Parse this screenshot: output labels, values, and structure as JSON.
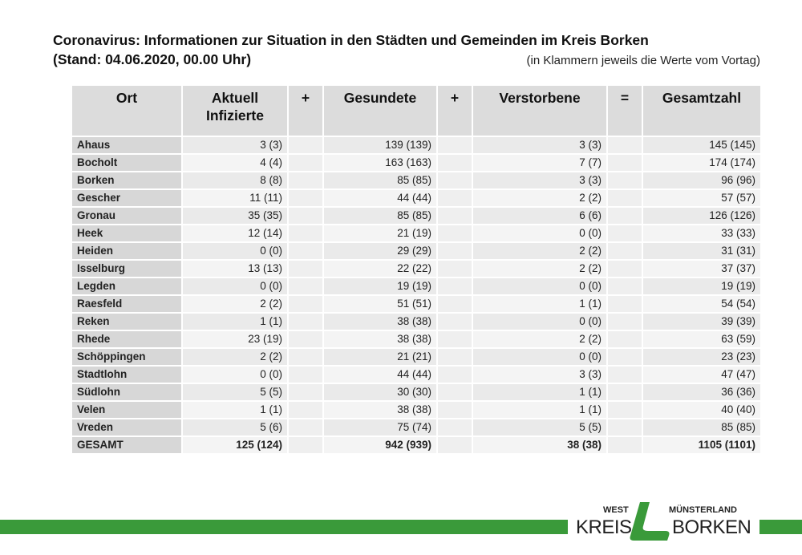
{
  "title": {
    "line1": "Coronavirus: Informationen zur Situation in den Städten und Gemeinden im Kreis Borken",
    "line2": "(Stand: 04.06.2020, 00.00 Uhr)",
    "note": "(in Klammern jeweils die Werte vom Vortag)"
  },
  "table": {
    "headers": {
      "ort": "Ort",
      "aktuell1": "Aktuell",
      "aktuell2": "Infizierte",
      "plus1": "+",
      "gesundete": "Gesundete",
      "plus2": "+",
      "verstorbene": "Verstorbene",
      "equals": "=",
      "gesamtzahl": "Gesamtzahl"
    },
    "rows": [
      {
        "ort": "Ahaus",
        "inf": "3 (3)",
        "ges": "139 (139)",
        "ver": "3 (3)",
        "tot": "145 (145)"
      },
      {
        "ort": "Bocholt",
        "inf": "4 (4)",
        "ges": "163 (163)",
        "ver": "7 (7)",
        "tot": "174 (174)"
      },
      {
        "ort": "Borken",
        "inf": "8 (8)",
        "ges": "85 (85)",
        "ver": "3 (3)",
        "tot": "96 (96)"
      },
      {
        "ort": "Gescher",
        "inf": "11 (11)",
        "ges": "44 (44)",
        "ver": "2 (2)",
        "tot": "57 (57)"
      },
      {
        "ort": "Gronau",
        "inf": "35 (35)",
        "ges": "85 (85)",
        "ver": "6 (6)",
        "tot": "126 (126)"
      },
      {
        "ort": "Heek",
        "inf": "12 (14)",
        "ges": "21 (19)",
        "ver": "0 (0)",
        "tot": "33 (33)"
      },
      {
        "ort": "Heiden",
        "inf": "0 (0)",
        "ges": "29 (29)",
        "ver": "2 (2)",
        "tot": "31 (31)"
      },
      {
        "ort": "Isselburg",
        "inf": "13 (13)",
        "ges": "22 (22)",
        "ver": "2 (2)",
        "tot": "37 (37)"
      },
      {
        "ort": "Legden",
        "inf": "0 (0)",
        "ges": "19 (19)",
        "ver": "0 (0)",
        "tot": "19 (19)"
      },
      {
        "ort": "Raesfeld",
        "inf": "2 (2)",
        "ges": "51 (51)",
        "ver": "1 (1)",
        "tot": "54 (54)"
      },
      {
        "ort": "Reken",
        "inf": "1 (1)",
        "ges": "38 (38)",
        "ver": "0 (0)",
        "tot": "39 (39)"
      },
      {
        "ort": "Rhede",
        "inf": "23 (19)",
        "ges": "38 (38)",
        "ver": "2 (2)",
        "tot": "63 (59)"
      },
      {
        "ort": "Schöppingen",
        "inf": "2 (2)",
        "ges": "21 (21)",
        "ver": "0 (0)",
        "tot": "23 (23)"
      },
      {
        "ort": "Stadtlohn",
        "inf": "0 (0)",
        "ges": "44 (44)",
        "ver": "3 (3)",
        "tot": "47 (47)"
      },
      {
        "ort": "Südlohn",
        "inf": "5 (5)",
        "ges": "30 (30)",
        "ver": "1 (1)",
        "tot": "36 (36)"
      },
      {
        "ort": "Velen",
        "inf": "1 (1)",
        "ges": "38 (38)",
        "ver": "1 (1)",
        "tot": "40 (40)"
      },
      {
        "ort": "Vreden",
        "inf": "5 (6)",
        "ges": "75 (74)",
        "ver": "5 (5)",
        "tot": "85 (85)"
      }
    ],
    "total": {
      "ort": "GESAMT",
      "inf": "125 (124)",
      "ges": "942 (939)",
      "ver": "38 (38)",
      "tot": "1105 (1101)"
    }
  },
  "logo": {
    "west": "WEST",
    "muensterland": "MÜNSTERLAND",
    "kreis": "KREIS",
    "borken": "BORKEN"
  },
  "colors": {
    "accent_green": "#3a9a3a",
    "header_gray": "#dcdcdc"
  }
}
